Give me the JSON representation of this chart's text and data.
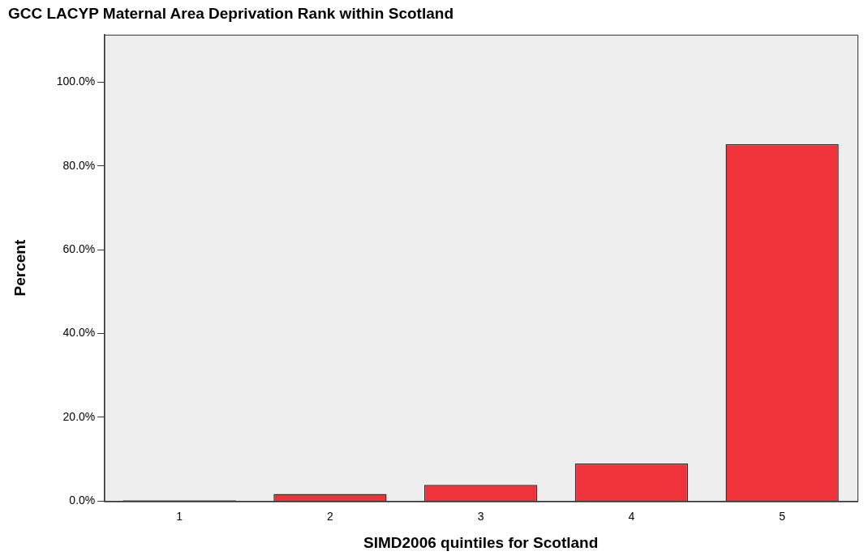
{
  "chart_data": {
    "type": "bar",
    "title": "GCC LACYP Maternal Area Deprivation Rank within Scotland",
    "xlabel": "SIMD2006 quintiles for Scotland",
    "ylabel": "Percent",
    "categories": [
      "1",
      "2",
      "3",
      "4",
      "5"
    ],
    "values": [
      0.2,
      1.7,
      3.9,
      9.0,
      85.2
    ],
    "color": "#f0323a",
    "ylim": [
      0,
      111.3
    ],
    "yticks": [
      {
        "value": 0,
        "label": "0.0%"
      },
      {
        "value": 20,
        "label": "20.0%"
      },
      {
        "value": 40,
        "label": "40.0%"
      },
      {
        "value": 60,
        "label": "60.0%"
      },
      {
        "value": 80,
        "label": "80.0%"
      },
      {
        "value": 100,
        "label": "100.0%"
      }
    ],
    "grid": false,
    "legend": false
  }
}
